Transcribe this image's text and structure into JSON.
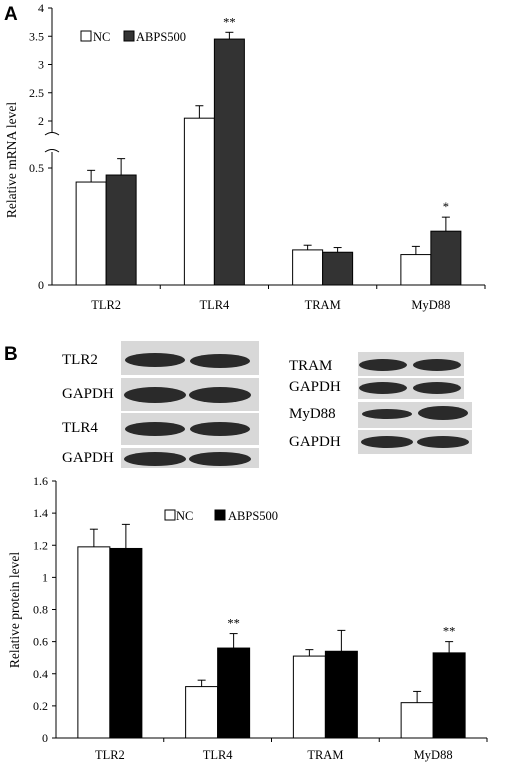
{
  "panels": {
    "a_letter": "A",
    "b_letter": "B"
  },
  "colors": {
    "nc_fill": "#ffffff",
    "abps_a_fill": "#333333",
    "abps_b_fill": "#000000",
    "blot_background": "#d8d8d8",
    "band": "#2a2a2a"
  },
  "blots": {
    "left": [
      {
        "label": "TLR2"
      },
      {
        "label": "GAPDH"
      },
      {
        "label": "TLR4"
      },
      {
        "label": "GAPDH"
      }
    ],
    "right": [
      {
        "label": "TRAM"
      },
      {
        "label": "GAPDH"
      },
      {
        "label": "MyD88"
      },
      {
        "label": "GAPDH"
      }
    ]
  },
  "chart_data": [
    {
      "panel": "A",
      "type": "bar",
      "ylabel": "Relative mRNA level",
      "categories": [
        "TLR2",
        "TLR4",
        "TRAM",
        "MyD88"
      ],
      "axis_break": {
        "lower": [
          0,
          0.5
        ],
        "upper": [
          2,
          4
        ]
      },
      "yticks": [
        "0",
        "0.5",
        "2",
        "2.5",
        "3",
        "3.5",
        "4"
      ],
      "legend": [
        "NC",
        "ABPS500"
      ],
      "legend_position": "top-left",
      "series": [
        {
          "name": "NC",
          "values": [
            0.44,
            2.05,
            0.15,
            0.13
          ],
          "errors": [
            0.05,
            0.22,
            0.02,
            0.035
          ]
        },
        {
          "name": "ABPS500",
          "values": [
            0.47,
            3.45,
            0.14,
            0.23
          ],
          "errors": [
            0.07,
            0.12,
            0.02,
            0.06
          ]
        }
      ],
      "significance": [
        {
          "category": "TLR4",
          "series": "ABPS500",
          "mark": "**"
        },
        {
          "category": "MyD88",
          "series": "ABPS500",
          "mark": "*"
        }
      ]
    },
    {
      "panel": "B",
      "type": "bar",
      "ylabel": "Relative protein level",
      "categories": [
        "TLR2",
        "TLR4",
        "TRAM",
        "MyD88"
      ],
      "ylim": [
        0,
        1.6
      ],
      "yticks": [
        "0",
        "0.2",
        "0.4",
        "0.6",
        "0.8",
        "1",
        "1.2",
        "1.4",
        "1.6"
      ],
      "legend": [
        "NC",
        "ABPS500"
      ],
      "legend_position": "top-center",
      "series": [
        {
          "name": "NC",
          "values": [
            1.19,
            0.32,
            0.51,
            0.22
          ],
          "errors": [
            0.11,
            0.04,
            0.04,
            0.07
          ]
        },
        {
          "name": "ABPS500",
          "values": [
            1.18,
            0.56,
            0.54,
            0.53
          ],
          "errors": [
            0.15,
            0.09,
            0.13,
            0.07
          ]
        }
      ],
      "significance": [
        {
          "category": "TLR4",
          "series": "ABPS500",
          "mark": "**"
        },
        {
          "category": "MyD88",
          "series": "ABPS500",
          "mark": "**"
        }
      ]
    }
  ]
}
